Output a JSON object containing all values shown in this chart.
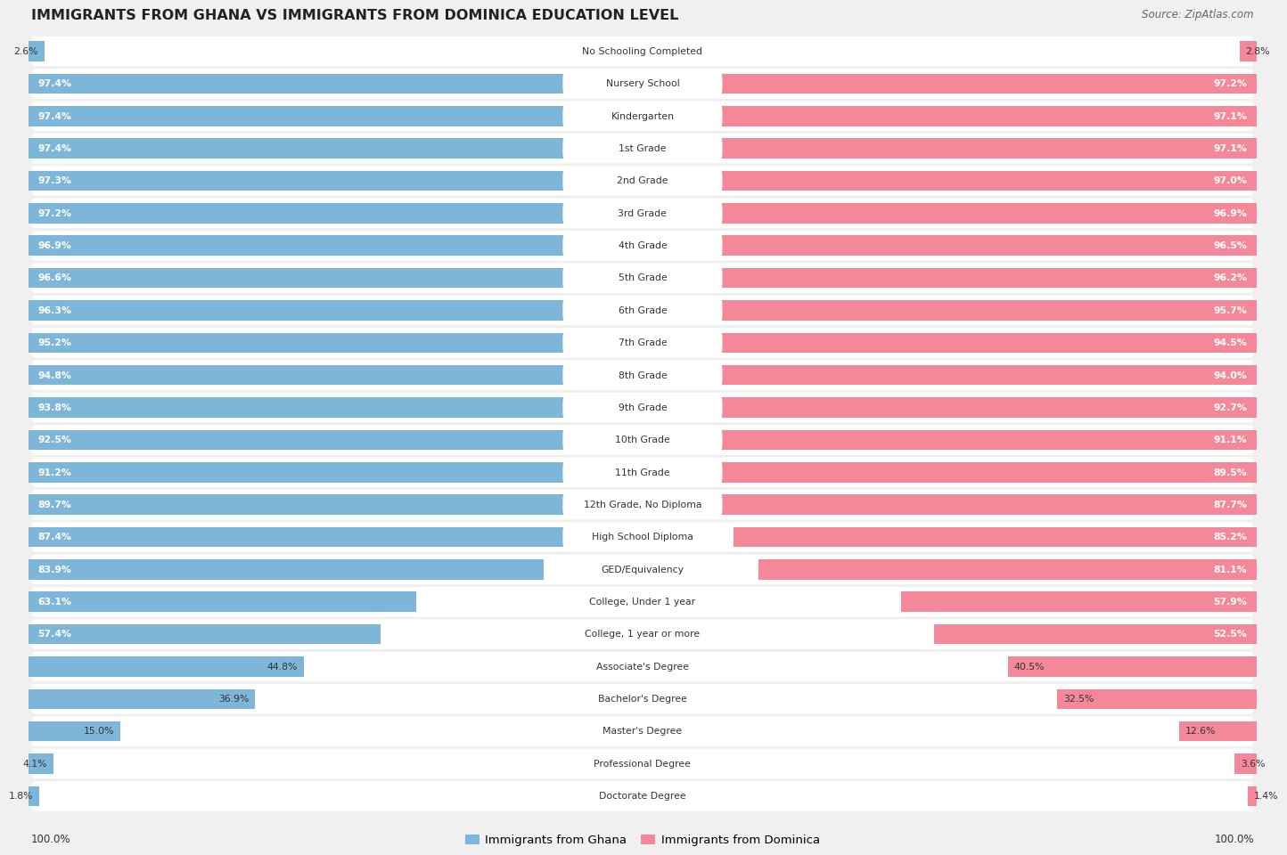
{
  "title": "IMMIGRANTS FROM GHANA VS IMMIGRANTS FROM DOMINICA EDUCATION LEVEL",
  "source": "Source: ZipAtlas.com",
  "categories": [
    "No Schooling Completed",
    "Nursery School",
    "Kindergarten",
    "1st Grade",
    "2nd Grade",
    "3rd Grade",
    "4th Grade",
    "5th Grade",
    "6th Grade",
    "7th Grade",
    "8th Grade",
    "9th Grade",
    "10th Grade",
    "11th Grade",
    "12th Grade, No Diploma",
    "High School Diploma",
    "GED/Equivalency",
    "College, Under 1 year",
    "College, 1 year or more",
    "Associate's Degree",
    "Bachelor's Degree",
    "Master's Degree",
    "Professional Degree",
    "Doctorate Degree"
  ],
  "ghana_values": [
    2.6,
    97.4,
    97.4,
    97.4,
    97.3,
    97.2,
    96.9,
    96.6,
    96.3,
    95.2,
    94.8,
    93.8,
    92.5,
    91.2,
    89.7,
    87.4,
    83.9,
    63.1,
    57.4,
    44.8,
    36.9,
    15.0,
    4.1,
    1.8
  ],
  "dominica_values": [
    2.8,
    97.2,
    97.1,
    97.1,
    97.0,
    96.9,
    96.5,
    96.2,
    95.7,
    94.5,
    94.0,
    92.7,
    91.1,
    89.5,
    87.7,
    85.2,
    81.1,
    57.9,
    52.5,
    40.5,
    32.5,
    12.6,
    3.6,
    1.4
  ],
  "ghana_color": "#7EB6D9",
  "dominica_color": "#F48898",
  "background_color": "#f0f0f0",
  "row_bg_color": "#ffffff",
  "legend_ghana": "Immigrants from Ghana",
  "legend_dominica": "Immigrants from Dominica",
  "max_value": 100.0,
  "label_fontsize": 7.8,
  "value_fontsize": 7.8,
  "title_fontsize": 11.5
}
